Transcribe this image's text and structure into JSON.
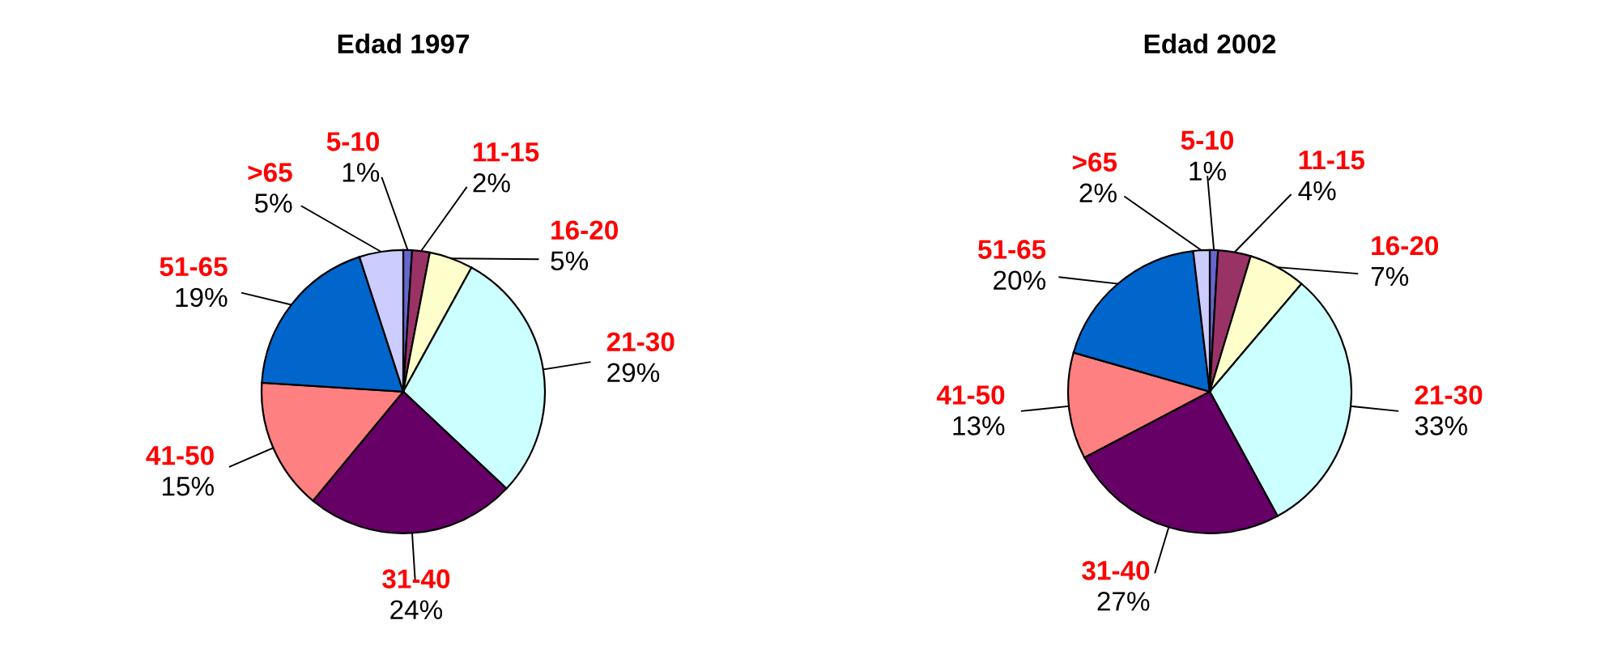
{
  "chart_data": [
    {
      "type": "pie",
      "title": "Edad 1997",
      "categories": [
        "5-10",
        "11-15",
        "16-20",
        "21-30",
        "31-40",
        "41-50",
        "51-65",
        ">65"
      ],
      "values": [
        1,
        2,
        5,
        29,
        24,
        15,
        19,
        5
      ],
      "value_labels": [
        "1%",
        "2%",
        "5%",
        "29%",
        "24%",
        "15%",
        "19%",
        "5%"
      ],
      "colors": [
        "#6666cc",
        "#993366",
        "#ffffcc",
        "#ccffff",
        "#660066",
        "#ff8080",
        "#0066cc",
        "#ccccff"
      ]
    },
    {
      "type": "pie",
      "title": "Edad 2002",
      "categories": [
        "5-10",
        "11-15",
        "16-20",
        "21-30",
        "31-40",
        "41-50",
        "51-65",
        ">65"
      ],
      "values": [
        1,
        4,
        7,
        33,
        27,
        13,
        20,
        2
      ],
      "value_labels": [
        "1%",
        "4%",
        "7%",
        "33%",
        "27%",
        "13%",
        "20%",
        "2%"
      ],
      "colors": [
        "#6666cc",
        "#993366",
        "#ffffcc",
        "#ccffff",
        "#660066",
        "#ff8080",
        "#0066cc",
        "#ccccff"
      ]
    }
  ]
}
